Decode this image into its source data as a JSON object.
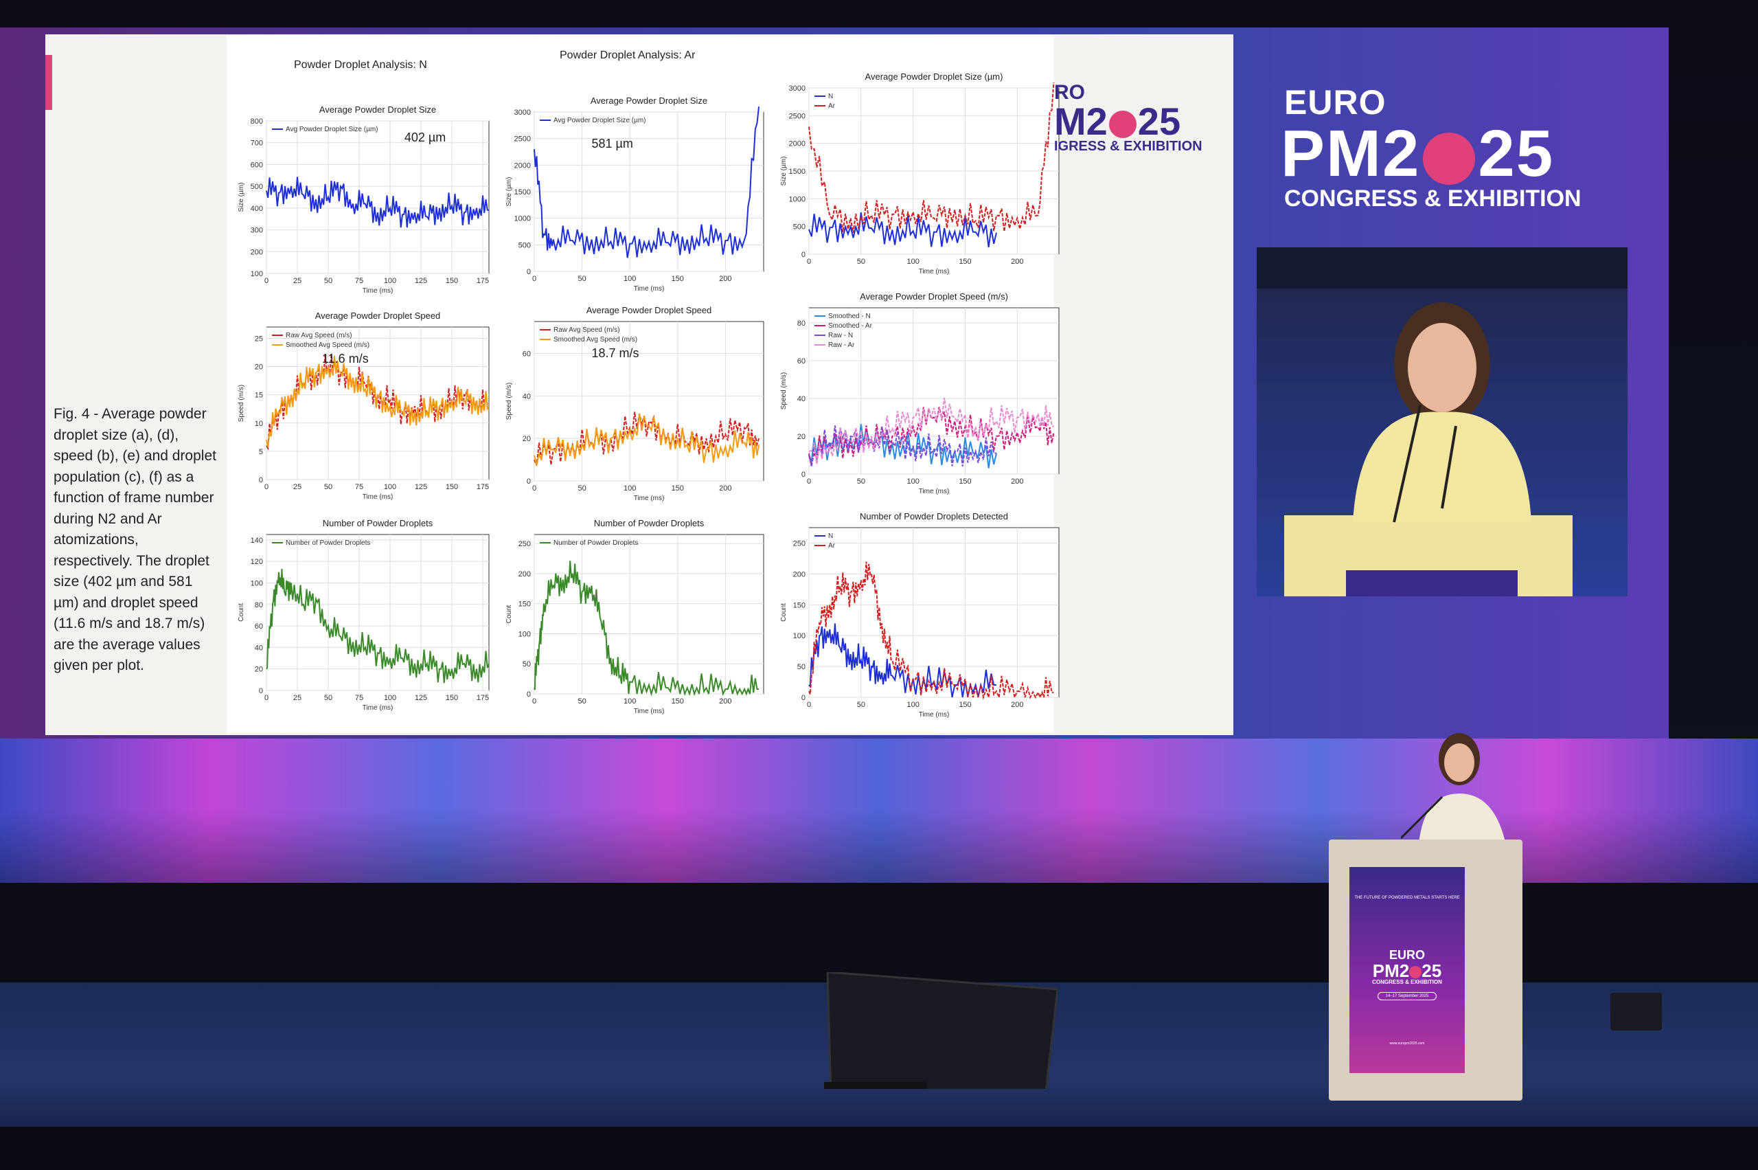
{
  "slide": {
    "analysis_title_n": "Powder Droplet Analysis: N",
    "analysis_title_ar": "Powder Droplet Analysis: Ar",
    "caption": "Fig. 4 - Average powder droplet size (a), (d), speed (b), (e) and droplet population (c), (f) as a function of frame number during N2 and Ar atomizations, respectively. The droplet size (402 µm and 581 µm) and droplet speed (11.6 m/s and 18.7 m/s) are the average values given per plot."
  },
  "brand": {
    "euro": "EURO",
    "pm": "PM2",
    "year_suffix": "25",
    "subtitle": "CONGRESS & EXHIBITION",
    "partial_euro": "RO",
    "partial_pm": "M2",
    "partial_sub": "IGRESS & EXHIBITION"
  },
  "podium": {
    "tagline": "THE FUTURE OF POWDERED METALS STARTS HERE",
    "euro": "EURO",
    "pm": "PM2",
    "year_suffix": "25",
    "subtitle": "CONGRESS & EXHIBITION",
    "date": "14–17 September 2025",
    "url": "www.europm2025.com"
  },
  "colors": {
    "blue": "#1f2fd6",
    "orange": "#f39c12",
    "red": "#d12020",
    "green": "#3a8a2a",
    "magenta": "#d01a7a",
    "lightblue": "#2a8ae0"
  },
  "chart_data": [
    {
      "id": "a",
      "type": "line",
      "title": "Average Powder Droplet Size",
      "xlabel": "Time (ms)",
      "ylabel": "Size (µm)",
      "xlim": [
        0,
        180
      ],
      "ylim": [
        100,
        800
      ],
      "xticks": [
        0,
        25,
        50,
        75,
        100,
        125,
        150,
        175
      ],
      "yticks": [
        100,
        200,
        300,
        400,
        500,
        600,
        700,
        800
      ],
      "annotation": "402 µm",
      "series": [
        {
          "name": "Avg Powder Droplet Size (µm)",
          "color": "#1f2fd6",
          "x": [
            0,
            10,
            20,
            30,
            40,
            50,
            60,
            70,
            80,
            90,
            100,
            110,
            120,
            130,
            140,
            150,
            160,
            170,
            180
          ],
          "y": [
            480,
            470,
            500,
            460,
            440,
            450,
            500,
            420,
            420,
            380,
            400,
            370,
            380,
            360,
            400,
            410,
            380,
            400,
            390
          ]
        }
      ]
    },
    {
      "id": "d",
      "type": "line",
      "title": "Average Powder Droplet Size",
      "xlabel": "Time (ms)",
      "ylabel": "Size (µm)",
      "xlim": [
        0,
        240
      ],
      "ylim": [
        0,
        3000
      ],
      "xticks": [
        0,
        50,
        100,
        150,
        200
      ],
      "yticks": [
        0,
        500,
        1000,
        1500,
        2000,
        2500,
        3000
      ],
      "annotation": "581 µm",
      "series": [
        {
          "name": "Avg Powder Droplet Size (µm)",
          "color": "#1f2fd6",
          "x": [
            0,
            10,
            20,
            40,
            60,
            80,
            100,
            120,
            140,
            160,
            180,
            200,
            220,
            235
          ],
          "y": [
            2300,
            700,
            600,
            580,
            600,
            560,
            520,
            560,
            540,
            600,
            620,
            580,
            600,
            3100
          ]
        }
      ]
    },
    {
      "id": "g",
      "type": "line",
      "title": "Average Powder Droplet Size (µm)",
      "xlabel": "Time (ms)",
      "ylabel": "Size (µm)",
      "xlim": [
        0,
        240
      ],
      "ylim": [
        0,
        3000
      ],
      "xticks": [
        0,
        50,
        100,
        150,
        200
      ],
      "yticks": [
        0,
        500,
        1000,
        1500,
        2000,
        2500,
        3000
      ],
      "series": [
        {
          "name": "N",
          "color": "#1f2fd6",
          "x": [
            0,
            20,
            40,
            60,
            80,
            100,
            120,
            140,
            160,
            180
          ],
          "y": [
            450,
            480,
            500,
            470,
            440,
            420,
            400,
            410,
            400,
            390
          ]
        },
        {
          "name": "Ar",
          "color": "#d12020",
          "x": [
            0,
            20,
            40,
            60,
            80,
            100,
            120,
            140,
            160,
            180,
            200,
            220,
            235
          ],
          "y": [
            2300,
            700,
            650,
            700,
            720,
            760,
            650,
            800,
            600,
            700,
            650,
            700,
            3100
          ]
        }
      ]
    },
    {
      "id": "b",
      "type": "line",
      "title": "Average Powder Droplet Speed",
      "xlabel": "Time (ms)",
      "ylabel": "Speed (m/s)",
      "xlim": [
        0,
        180
      ],
      "ylim": [
        0,
        27
      ],
      "xticks": [
        0,
        25,
        50,
        75,
        100,
        125,
        150,
        175
      ],
      "yticks": [
        0,
        5,
        10,
        15,
        20,
        25
      ],
      "annotation": "11.6 m/s",
      "series": [
        {
          "name": "Raw Avg Speed (m/s)",
          "color": "#d12020",
          "x": [
            0,
            10,
            20,
            30,
            40,
            50,
            60,
            70,
            80,
            90,
            100,
            110,
            120,
            130,
            140,
            150,
            160,
            170,
            180
          ],
          "y": [
            6,
            12,
            15,
            17,
            19,
            20,
            19,
            18,
            17,
            15,
            14,
            12,
            13,
            12,
            13,
            14,
            15,
            14,
            13
          ]
        },
        {
          "name": "Smoothed Avg Speed (m/s)",
          "color": "#f39c12",
          "x": [
            0,
            10,
            20,
            30,
            40,
            50,
            60,
            70,
            80,
            90,
            100,
            110,
            120,
            130,
            140,
            150,
            160,
            170,
            180
          ],
          "y": [
            7,
            12,
            15,
            17,
            19,
            20,
            19,
            18,
            16,
            15,
            13,
            12,
            12,
            12,
            13,
            14,
            14,
            14,
            13
          ]
        }
      ]
    },
    {
      "id": "e",
      "type": "line",
      "title": "Average Powder Droplet Speed",
      "xlabel": "Time (ms)",
      "ylabel": "Speed (m/s)",
      "xlim": [
        0,
        240
      ],
      "ylim": [
        0,
        75
      ],
      "xticks": [
        0,
        50,
        100,
        150,
        200
      ],
      "yticks": [
        0,
        20,
        40,
        60
      ],
      "annotation": "18.7 m/s",
      "series": [
        {
          "name": "Raw Avg Speed (m/s)",
          "color": "#d12020",
          "x": [
            0,
            20,
            40,
            60,
            80,
            100,
            120,
            140,
            160,
            180,
            200,
            220,
            235
          ],
          "y": [
            10,
            15,
            17,
            18,
            20,
            25,
            28,
            22,
            18,
            20,
            22,
            25,
            20
          ]
        },
        {
          "name": "Smoothed Avg Speed (m/s)",
          "color": "#f39c12",
          "x": [
            0,
            20,
            40,
            60,
            80,
            100,
            120,
            140,
            160,
            180,
            200,
            220,
            235
          ],
          "y": [
            12,
            15,
            17,
            18,
            20,
            24,
            26,
            22,
            17,
            15,
            16,
            18,
            17
          ]
        }
      ]
    },
    {
      "id": "h",
      "type": "line",
      "title": "Average Powder Droplet Speed (m/s)",
      "xlabel": "Time (ms)",
      "ylabel": "Speed (m/s)",
      "xlim": [
        0,
        240
      ],
      "ylim": [
        0,
        88
      ],
      "xticks": [
        0,
        50,
        100,
        150,
        200
      ],
      "yticks": [
        0,
        20,
        40,
        60,
        80
      ],
      "series": [
        {
          "name": "Smoothed - N",
          "color": "#2a8ae0",
          "x": [
            0,
            20,
            40,
            60,
            80,
            100,
            120,
            140,
            160,
            180
          ],
          "y": [
            10,
            16,
            19,
            18,
            16,
            14,
            13,
            12,
            11,
            11
          ]
        },
        {
          "name": "Smoothed - Ar",
          "color": "#d01a7a",
          "x": [
            0,
            20,
            40,
            60,
            80,
            100,
            120,
            140,
            160,
            180,
            200,
            220,
            235
          ],
          "y": [
            10,
            15,
            17,
            18,
            20,
            25,
            30,
            28,
            22,
            20,
            22,
            25,
            22
          ]
        },
        {
          "name": "Raw - N",
          "color": "#7a4ad8",
          "x": [
            0,
            20,
            40,
            60,
            80,
            100,
            120,
            140,
            160,
            180
          ],
          "y": [
            11,
            17,
            20,
            18,
            17,
            15,
            13,
            12,
            12,
            11
          ]
        },
        {
          "name": "Raw - Ar",
          "color": "#e88ad0",
          "x": [
            0,
            20,
            40,
            60,
            80,
            100,
            120,
            140,
            160,
            180,
            200,
            220,
            235
          ],
          "y": [
            12,
            15,
            18,
            20,
            24,
            30,
            35,
            30,
            25,
            28,
            30,
            32,
            25
          ]
        }
      ]
    },
    {
      "id": "c",
      "type": "line",
      "title": "Number of Powder Droplets",
      "xlabel": "Time (ms)",
      "ylabel": "Count",
      "xlim": [
        0,
        180
      ],
      "ylim": [
        0,
        145
      ],
      "xticks": [
        0,
        25,
        50,
        75,
        100,
        125,
        150,
        175
      ],
      "yticks": [
        0,
        20,
        40,
        60,
        80,
        100,
        120,
        140
      ],
      "series": [
        {
          "name": "Number of Powder Droplets",
          "color": "#3a8a2a",
          "x": [
            0,
            5,
            10,
            15,
            20,
            30,
            40,
            50,
            60,
            70,
            80,
            90,
            100,
            110,
            120,
            130,
            140,
            150,
            160,
            170,
            180
          ],
          "y": [
            20,
            80,
            110,
            90,
            100,
            80,
            85,
            60,
            50,
            45,
            40,
            35,
            30,
            30,
            25,
            25,
            20,
            20,
            25,
            20,
            25
          ]
        }
      ]
    },
    {
      "id": "f",
      "type": "line",
      "title": "Number of Powder Droplets",
      "xlabel": "Time (ms)",
      "ylabel": "Count",
      "xlim": [
        0,
        240
      ],
      "ylim": [
        0,
        265
      ],
      "xticks": [
        0,
        50,
        100,
        150,
        200
      ],
      "yticks": [
        0,
        50,
        100,
        150,
        200,
        250
      ],
      "series": [
        {
          "name": "Number of Powder Droplets",
          "color": "#3a8a2a",
          "x": [
            0,
            5,
            10,
            20,
            30,
            40,
            50,
            60,
            70,
            80,
            90,
            100,
            120,
            140,
            160,
            180,
            200,
            220,
            235
          ],
          "y": [
            10,
            80,
            150,
            180,
            190,
            200,
            170,
            180,
            120,
            60,
            30,
            20,
            15,
            10,
            10,
            10,
            8,
            8,
            8
          ]
        }
      ]
    },
    {
      "id": "i",
      "type": "line",
      "title": "Number of Powder Droplets Detected",
      "xlabel": "Time (ms)",
      "ylabel": "Count",
      "xlim": [
        0,
        240
      ],
      "ylim": [
        0,
        275
      ],
      "xticks": [
        0,
        50,
        100,
        150,
        200
      ],
      "yticks": [
        0,
        50,
        100,
        150,
        200,
        250
      ],
      "series": [
        {
          "name": "N",
          "color": "#1f2fd6",
          "x": [
            0,
            10,
            20,
            30,
            40,
            50,
            60,
            70,
            80,
            100,
            120,
            140,
            160,
            180
          ],
          "y": [
            20,
            100,
            110,
            80,
            70,
            60,
            50,
            40,
            35,
            30,
            25,
            20,
            20,
            20
          ]
        },
        {
          "name": "Ar",
          "color": "#d12020",
          "x": [
            0,
            10,
            20,
            30,
            40,
            50,
            60,
            70,
            80,
            100,
            120,
            140,
            160,
            180,
            200,
            220,
            235
          ],
          "y": [
            10,
            120,
            150,
            180,
            170,
            190,
            200,
            120,
            60,
            30,
            25,
            20,
            15,
            10,
            10,
            8,
            8
          ]
        }
      ]
    }
  ]
}
